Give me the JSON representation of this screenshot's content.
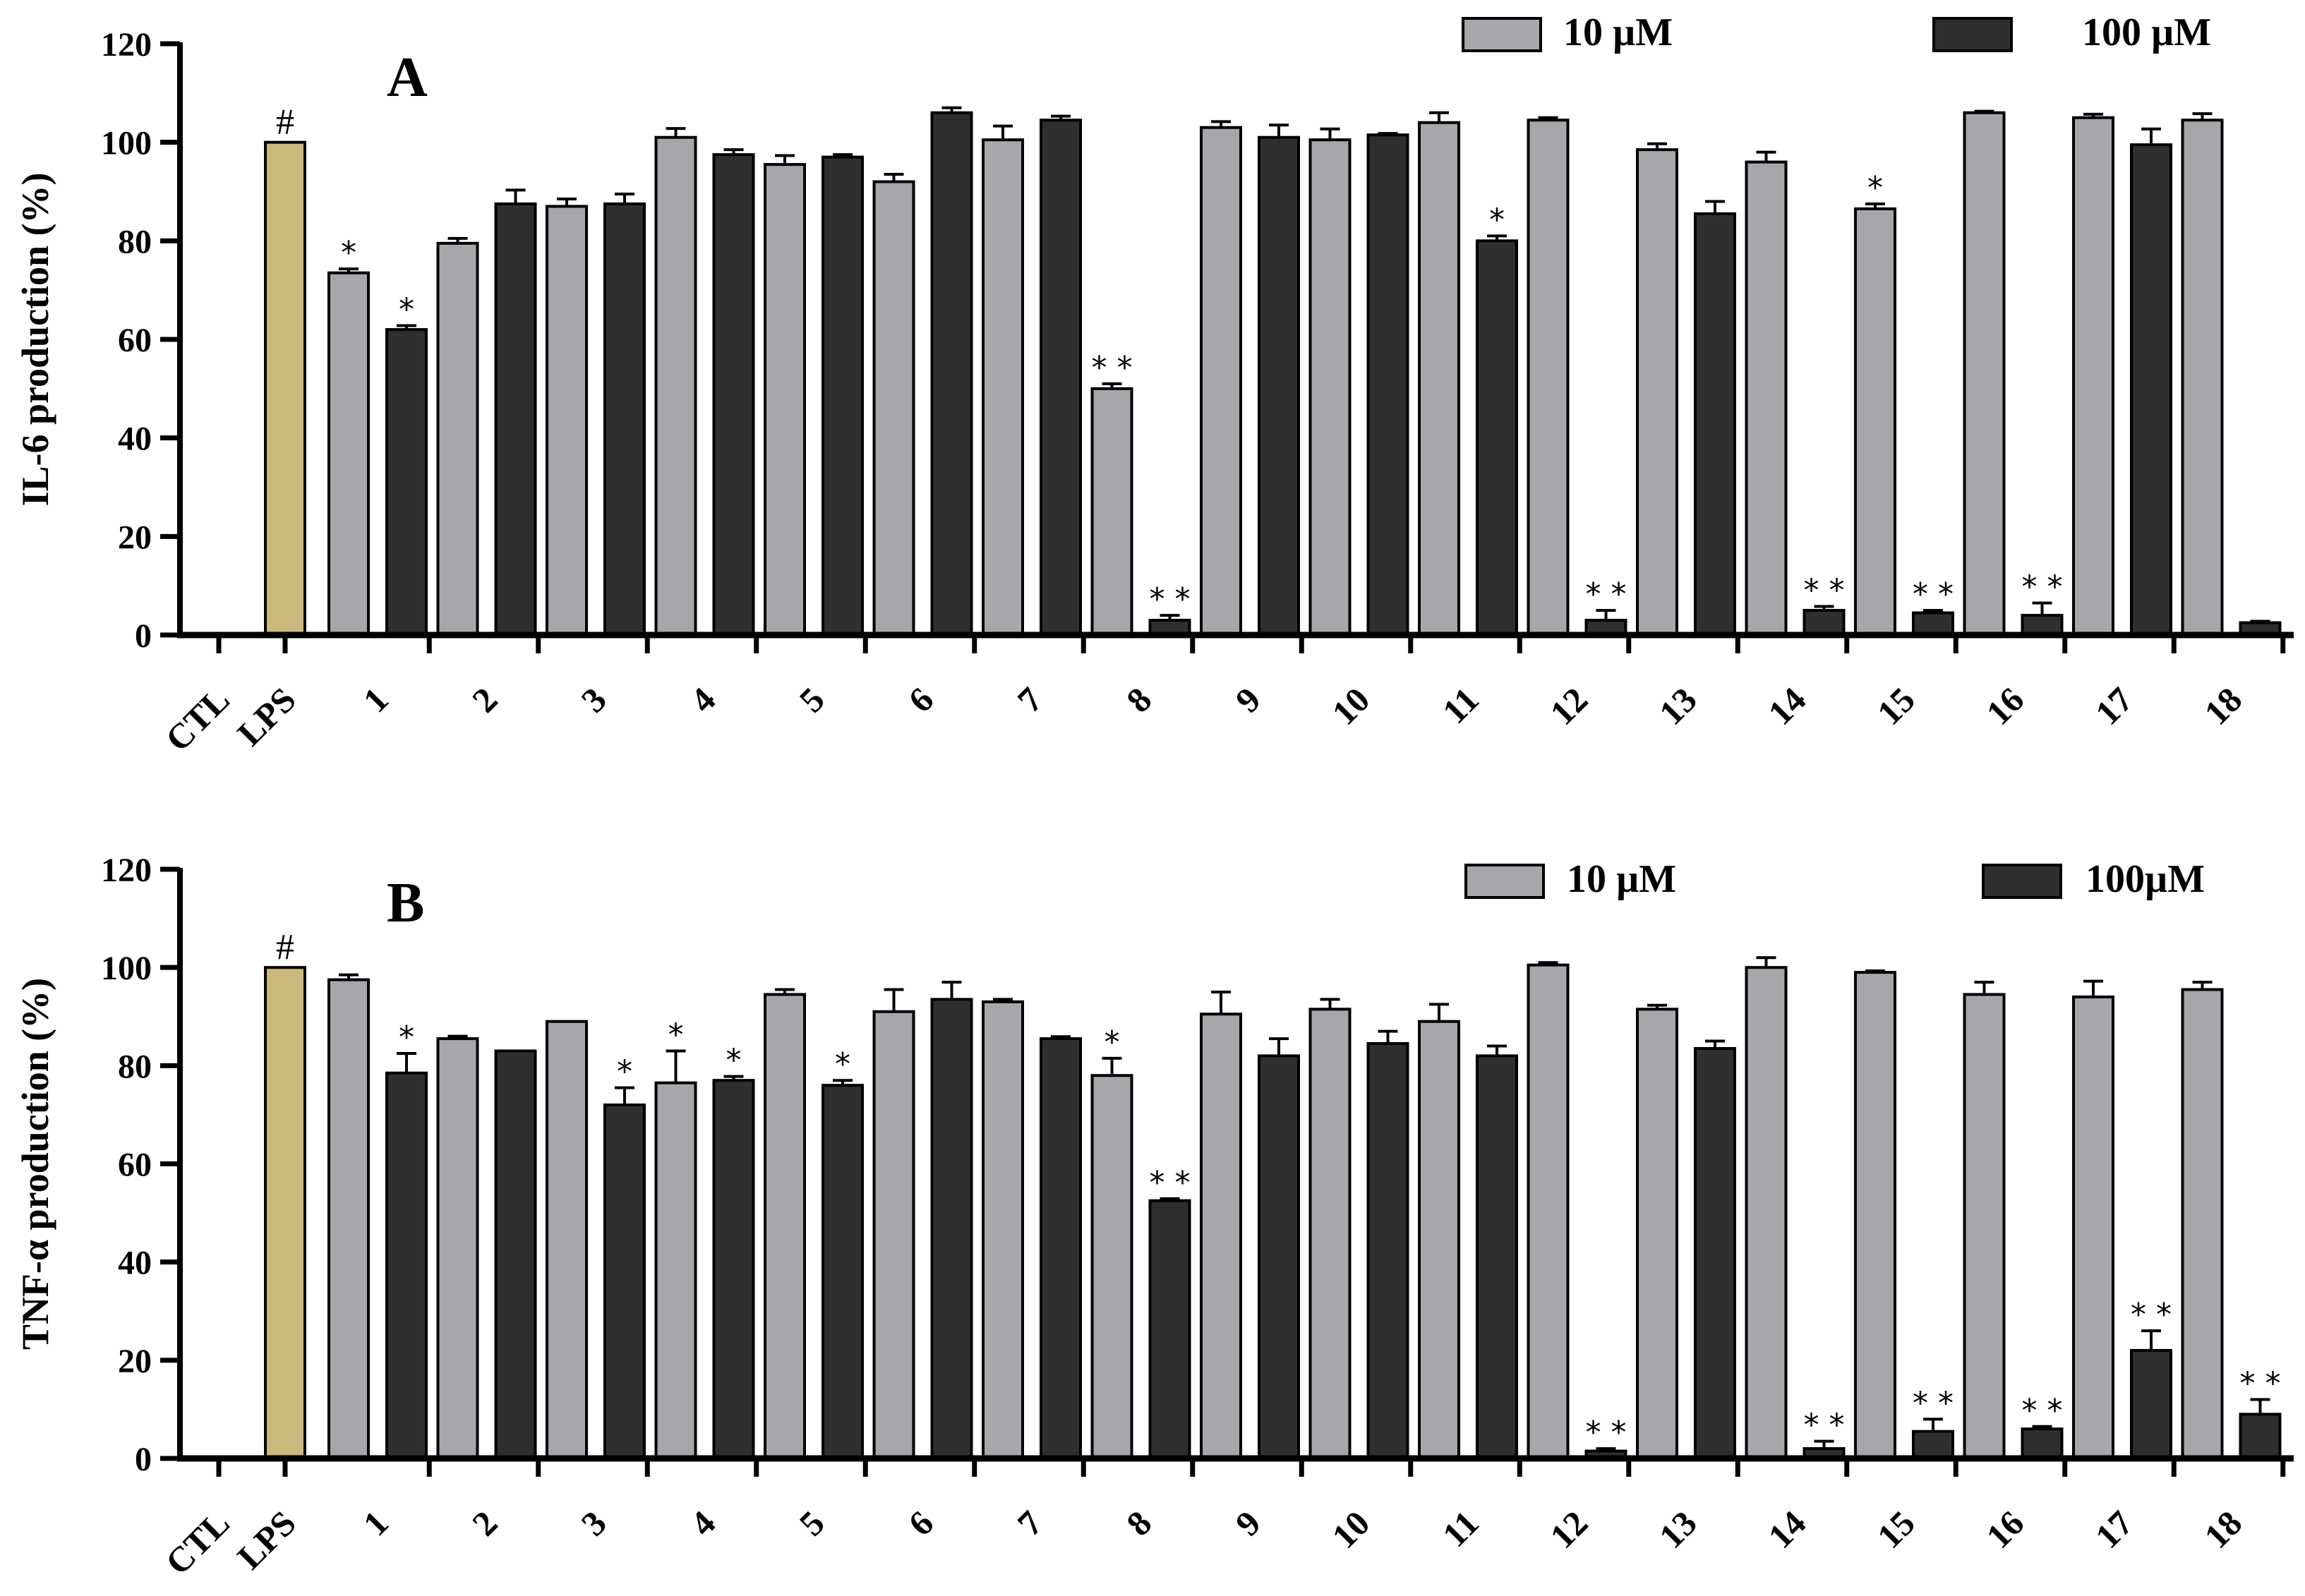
{
  "colors": {
    "lps": "#c9b97c",
    "low": "#a6a6ab",
    "high": "#2f2f31",
    "axis": "#000000"
  },
  "chart_data": [
    {
      "type": "bar",
      "panel": "A",
      "ylabel": "IL-6 production (%)",
      "ylim": [
        0,
        120
      ],
      "yticks": [
        0,
        20,
        40,
        60,
        80,
        100,
        120
      ],
      "legend": {
        "low": "10 µM",
        "high": "100 µM"
      },
      "control": {
        "labels": [
          "CTL",
          "LPS"
        ],
        "values": [
          0,
          100
        ],
        "lps_annotation": "#"
      },
      "categories": [
        "1",
        "2",
        "3",
        "4",
        "5",
        "6",
        "7",
        "8",
        "9",
        "10",
        "11",
        "12",
        "13",
        "14",
        "15",
        "16",
        "17",
        "18"
      ],
      "series": [
        {
          "name": "10 µM",
          "values": [
            73.5,
            79.5,
            87,
            101,
            95.5,
            92,
            100.5,
            50,
            103,
            100.5,
            104,
            104.5,
            98.5,
            96,
            86.5,
            106,
            105,
            104.5
          ],
          "errors": [
            0.8,
            1,
            1.5,
            1.8,
            1.8,
            1.5,
            2.8,
            1,
            1.2,
            2.2,
            2,
            0.5,
            1.2,
            2,
            1,
            0.3,
            0.7,
            1.3
          ],
          "sig": [
            "*",
            "",
            "",
            "",
            "",
            "",
            "",
            "**",
            "",
            "",
            "",
            "",
            "",
            "",
            "*",
            "",
            "",
            ""
          ]
        },
        {
          "name": "100 µM",
          "values": [
            62,
            87.5,
            87.5,
            97.5,
            97,
            106,
            104.5,
            3,
            101,
            101.5,
            80,
            3,
            85.5,
            5,
            4.5,
            4,
            99.5,
            2.5
          ],
          "errors": [
            0.8,
            2.8,
            2,
            1,
            0.5,
            1,
            0.8,
            1,
            2.5,
            0.3,
            1,
            2,
            2.5,
            0.8,
            0.5,
            2.5,
            3.2,
            0.3
          ],
          "sig": [
            "*",
            "",
            "",
            "",
            "",
            "",
            "",
            "**",
            "",
            "",
            "*",
            "**",
            "",
            "**",
            "**",
            "**",
            "",
            ""
          ]
        }
      ]
    },
    {
      "type": "bar",
      "panel": "B",
      "ylabel": "TNF-α production (%)",
      "ylim": [
        0,
        120
      ],
      "yticks": [
        0,
        20,
        40,
        60,
        80,
        100,
        120
      ],
      "legend": {
        "low": "10 µM",
        "high": "100µM"
      },
      "control": {
        "labels": [
          "CTL",
          "LPS"
        ],
        "values": [
          0,
          100
        ],
        "lps_annotation": "#"
      },
      "categories": [
        "1",
        "2",
        "3",
        "4",
        "5",
        "6",
        "7",
        "8",
        "9",
        "10",
        "11",
        "12",
        "13",
        "14",
        "15",
        "16",
        "17",
        "18"
      ],
      "series": [
        {
          "name": "10 µM",
          "values": [
            97.5,
            85.5,
            89,
            76.5,
            94.5,
            91,
            93,
            78,
            90.5,
            91.5,
            89,
            100.5,
            91.5,
            100,
            99,
            94.5,
            94,
            95.5
          ],
          "errors": [
            1,
            0.5,
            0,
            6.5,
            1,
            4.5,
            0.5,
            3.5,
            4.5,
            2,
            3.5,
            0.5,
            0.8,
            2,
            0.3,
            2.5,
            3.2,
            1.5
          ],
          "sig": [
            "",
            "",
            "",
            "*",
            "",
            "",
            "",
            "*",
            "",
            "",
            "",
            "",
            "",
            "",
            "",
            "",
            "",
            ""
          ]
        },
        {
          "name": "100µM",
          "values": [
            78.5,
            83,
            72,
            77,
            76,
            93.5,
            85.5,
            52.5,
            82,
            84.5,
            82,
            1.5,
            83.5,
            2,
            5.5,
            6,
            22,
            9
          ],
          "errors": [
            4,
            0,
            3.5,
            0.8,
            1,
            3.5,
            0.4,
            0.4,
            3.5,
            2.5,
            2,
            0.5,
            1.5,
            1.5,
            2.5,
            0.5,
            4,
            3
          ],
          "sig": [
            "*",
            "",
            "*",
            "*",
            "*",
            "",
            "",
            "**",
            "",
            "",
            "",
            "**",
            "",
            "**",
            "**",
            "**",
            "**",
            "**"
          ]
        }
      ]
    }
  ]
}
